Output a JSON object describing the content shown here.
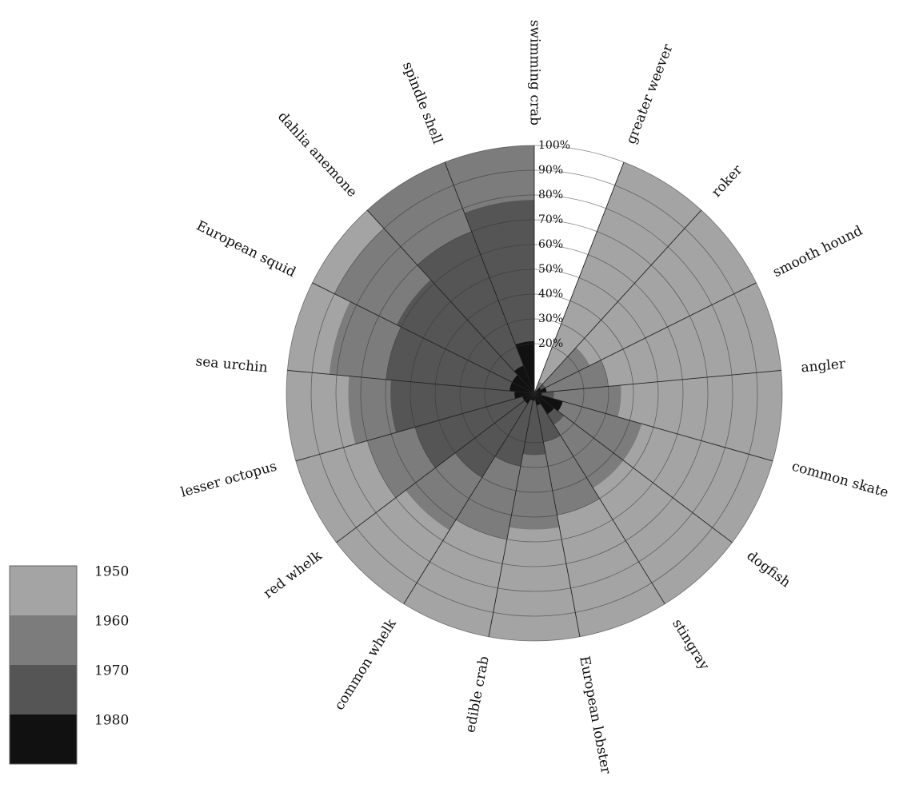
{
  "chart_data": {
    "type": "polar_area",
    "categories": [
      "swimming crab",
      "greater weever",
      "roker",
      "smooth hound",
      "angler",
      "common skate",
      "dogfish",
      "stingray",
      "European lobster",
      "edible crab",
      "common whelk",
      "red whelk",
      "lesser octopus",
      "sea urchin",
      "European squid",
      "dahlia anemone",
      "spindle shell"
    ],
    "series": [
      {
        "name": "1950",
        "color": "#a4a4a4",
        "values": [
          0,
          100,
          100,
          100,
          100,
          100,
          100,
          100,
          100,
          100,
          100,
          100,
          100,
          100,
          100,
          100,
          100
        ]
      },
      {
        "name": "1960",
        "color": "#7c7c7c",
        "values": [
          0,
          5,
          25,
          30,
          35,
          45,
          45,
          50,
          55,
          60,
          65,
          70,
          75,
          83,
          90,
          100,
          100
        ]
      },
      {
        "name": "1970",
        "color": "#555555",
        "values": [
          0,
          0,
          5,
          5,
          8,
          10,
          15,
          20,
          25,
          30,
          40,
          50,
          58,
          60,
          62,
          70,
          78
        ]
      },
      {
        "name": "1980",
        "color": "#111111",
        "values": [
          0,
          0,
          3,
          5,
          3,
          12,
          10,
          5,
          3,
          3,
          5,
          5,
          8,
          10,
          10,
          12,
          21
        ]
      }
    ],
    "rlim": [
      0,
      100
    ],
    "rticks": [
      {
        "value": 20,
        "label": "20%"
      },
      {
        "value": 30,
        "label": "30%"
      },
      {
        "value": 40,
        "label": "40%"
      },
      {
        "value": 50,
        "label": "50%"
      },
      {
        "value": 60,
        "label": "60%"
      },
      {
        "value": 70,
        "label": "70%"
      },
      {
        "value": 80,
        "label": "80%"
      },
      {
        "value": 90,
        "label": "90%"
      },
      {
        "value": 100,
        "label": "100%"
      }
    ],
    "grid": true,
    "legend": "bottom-left"
  }
}
